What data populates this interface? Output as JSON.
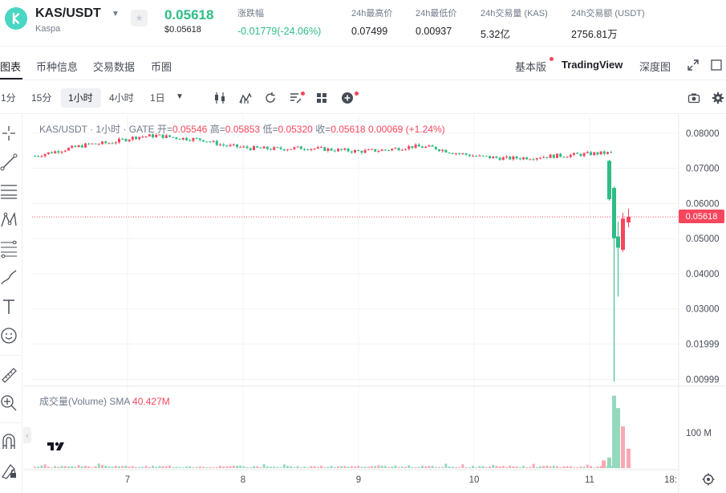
{
  "header": {
    "pair": "KAS/USDT",
    "pair_full_name": "Kaspa",
    "last_price": "0.05618",
    "last_price_usd": "$0.05618",
    "stats": [
      {
        "label": "涨跌幅",
        "value": "-0.01779(-24.06%)"
      },
      {
        "label": "24h最高价",
        "value": "0.07499"
      },
      {
        "label": "24h最低价",
        "value": "0.00937"
      },
      {
        "label": "24h交易量 (KAS)",
        "value": "5.32亿"
      },
      {
        "label": "24h交易额 (USDT)",
        "value": "2756.81万"
      }
    ]
  },
  "tabs": [
    "图表",
    "币种信息",
    "交易数据",
    "币圈"
  ],
  "views": {
    "basic": "基本版",
    "tradingview": "TradingView",
    "depth": "深度图"
  },
  "timeframes": [
    "1分",
    "15分",
    "1小时",
    "4小时",
    "1日"
  ],
  "legend": {
    "title": "KAS/USDT · 1小时 · GATE",
    "open_label": "开=",
    "open": "0.05546",
    "high_label": "高=",
    "high": "0.05853",
    "low_label": "低=",
    "low": "0.05320",
    "close_label": "收=",
    "close": "0.05618",
    "change": "0.00069 (+1.24%)"
  },
  "volume_legend": {
    "label": "成交量(Volume) SMA",
    "value": "40.427M"
  },
  "price_tag": "0.05618",
  "chart_data": {
    "type": "candlestick",
    "title": "KAS/USDT · 1小时 · GATE",
    "x_ticks": [
      "7",
      "8",
      "9",
      "10",
      "11",
      "18:"
    ],
    "y_ticks": [
      "0.08000",
      "0.07000",
      "0.06000",
      "0.05000",
      "0.04000",
      "0.03000",
      "0.01999",
      "0.00999"
    ],
    "y_range": [
      0.0087,
      0.0852
    ],
    "volume_ticks": [
      "100 M"
    ],
    "volume_range_millions": [
      0,
      225
    ],
    "last_price": 0.05618,
    "up_color": "#f6465d",
    "down_color": "#2ebd85",
    "price_path": [
      [
        0,
        0.0735
      ],
      [
        8,
        0.0752
      ],
      [
        16,
        0.0768
      ],
      [
        22,
        0.0772
      ],
      [
        30,
        0.0789
      ],
      [
        36,
        0.0793
      ],
      [
        44,
        0.0785
      ],
      [
        50,
        0.0781
      ],
      [
        56,
        0.0765
      ],
      [
        64,
        0.0757
      ],
      [
        72,
        0.0755
      ],
      [
        80,
        0.0758
      ],
      [
        88,
        0.0753
      ],
      [
        96,
        0.0748
      ],
      [
        104,
        0.0752
      ],
      [
        112,
        0.0762
      ],
      [
        118,
        0.0759
      ],
      [
        124,
        0.0745
      ],
      [
        132,
        0.0733
      ],
      [
        140,
        0.0728
      ],
      [
        148,
        0.0731
      ],
      [
        154,
        0.0735
      ],
      [
        160,
        0.0738
      ],
      [
        166,
        0.0742
      ],
      [
        172,
        0.0744
      ],
      [
        176,
        0.0738
      ],
      [
        182,
        0.0718
      ],
      [
        184,
        0.0702
      ],
      [
        186,
        0.0612
      ],
      [
        187,
        0.0574
      ],
      [
        188,
        0.0505
      ],
      [
        189,
        0.0488
      ],
      [
        190,
        0.0562
      ]
    ],
    "final_candles": [
      {
        "o": 0.0721,
        "h": 0.0724,
        "l": 0.0608,
        "c": 0.0612
      },
      {
        "o": 0.0644,
        "h": 0.0648,
        "l": 0.0093,
        "c": 0.0501
      },
      {
        "o": 0.0506,
        "h": 0.0548,
        "l": 0.0335,
        "c": 0.0474
      },
      {
        "o": 0.0468,
        "h": 0.0573,
        "l": 0.0462,
        "c": 0.0557
      },
      {
        "o": 0.0546,
        "h": 0.0585,
        "l": 0.0532,
        "c": 0.0562
      }
    ],
    "volume_final_millions": [
      22,
      30,
      205,
      170,
      118,
      55
    ]
  }
}
